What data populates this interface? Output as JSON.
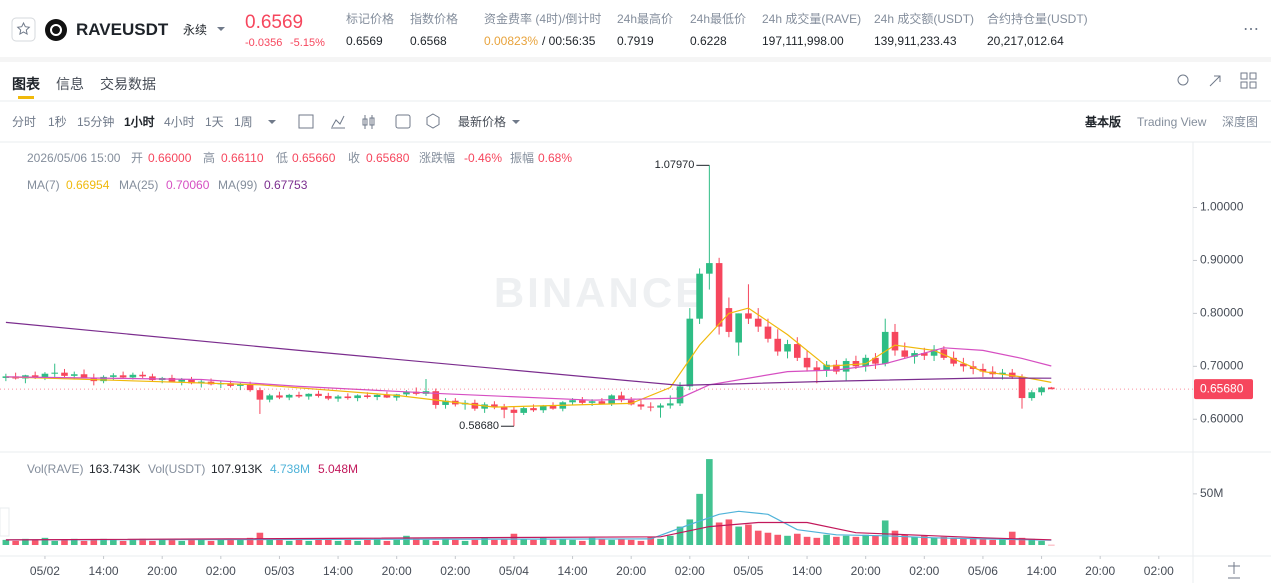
{
  "header": {
    "symbol": "RAVEUSDT",
    "contract": "永续",
    "price": "0.6569",
    "change": "-0.0356",
    "change_pct": "-5.15%",
    "stats": [
      {
        "label": "标记价格",
        "value": "0.6569"
      },
      {
        "label": "指数价格",
        "value": "0.6568"
      },
      {
        "label": "资金费率 (4时)/倒计时",
        "value": "0.00823%",
        "extra": "/ 00:56:35"
      },
      {
        "label": "24h最高价",
        "value": "0.7919"
      },
      {
        "label": "24h最低价",
        "value": "0.6228"
      },
      {
        "label": "24h 成交量(RAVE)",
        "value": "197,111,998.00"
      },
      {
        "label": "24h 成交额(USDT)",
        "value": "139,911,233.43"
      },
      {
        "label": "合约持仓量(USDT)",
        "value": "20,217,012.64"
      }
    ]
  },
  "tabs": [
    "图表",
    "信息",
    "交易数据"
  ],
  "intervals": [
    "分时",
    "1秒",
    "15分钟",
    "1小时",
    "4小时",
    "1天",
    "1周"
  ],
  "price_type": "最新价格",
  "views": [
    "基本版",
    "Trading View",
    "深度图"
  ],
  "chart_data": {
    "type": "candlestick",
    "up_color": "#2ebd85",
    "down_color": "#f6465d",
    "watermark": "BINANCE",
    "legend": {
      "time": "2026/05/06 15:00",
      "items": [
        {
          "label": "开",
          "value": "0.66000"
        },
        {
          "label": "高",
          "value": "0.66110"
        },
        {
          "label": "低",
          "value": "0.65660"
        },
        {
          "label": "收",
          "value": "0.65680"
        },
        {
          "label": "涨跌幅",
          "value": "-0.46%"
        },
        {
          "label": "振幅",
          "value": "0.68%"
        }
      ]
    },
    "xlim": [
      -0.6,
      121.5
    ],
    "xticks": [
      {
        "value": 4,
        "label": "05/02"
      },
      {
        "value": 10,
        "label": "14:00"
      },
      {
        "value": 16,
        "label": "20:00"
      },
      {
        "value": 22,
        "label": "02:00"
      },
      {
        "value": 28,
        "label": "05/03"
      },
      {
        "value": 34,
        "label": "14:00"
      },
      {
        "value": 40,
        "label": "20:00"
      },
      {
        "value": 46,
        "label": "02:00"
      },
      {
        "value": 52,
        "label": "05/04"
      },
      {
        "value": 58,
        "label": "14:00"
      },
      {
        "value": 64,
        "label": "20:00"
      },
      {
        "value": 70,
        "label": "02:00"
      },
      {
        "value": 76,
        "label": "05/05"
      },
      {
        "value": 82,
        "label": "14:00"
      },
      {
        "value": 88,
        "label": "20:00"
      },
      {
        "value": 94,
        "label": "02:00"
      },
      {
        "value": 100,
        "label": "05/06"
      },
      {
        "value": 106,
        "label": "14:00"
      },
      {
        "value": 112,
        "label": "20:00"
      },
      {
        "value": 118,
        "label": "02:00"
      }
    ],
    "ylim": [
      0.54,
      1.12
    ],
    "yticks": [
      {
        "value": 0.6,
        "label": "0.60000"
      },
      {
        "value": 0.7,
        "label": "0.70000"
      },
      {
        "value": 0.8,
        "label": "0.80000"
      },
      {
        "value": 0.9,
        "label": "0.90000"
      },
      {
        "value": 1.0,
        "label": "1.00000"
      }
    ],
    "last_price": {
      "value": 0.6568,
      "label": "0.65680"
    },
    "high_mark": {
      "value": 1.0797,
      "label": "1.07970"
    },
    "low_mark": {
      "value": 0.5868,
      "label": "0.58680"
    },
    "series": [
      {
        "name": "MA(7)",
        "color": "#f0b90b",
        "value_label": "0.66954",
        "x": [
          0,
          26,
          40,
          50,
          64,
          68,
          71,
          74,
          76,
          80,
          84,
          88,
          91,
          95,
          100,
          104,
          107
        ],
        "values": [
          0.68,
          0.665,
          0.645,
          0.623,
          0.63,
          0.66,
          0.74,
          0.8,
          0.81,
          0.76,
          0.7,
          0.705,
          0.74,
          0.73,
          0.69,
          0.68,
          0.66954
        ]
      },
      {
        "name": "MA(25)",
        "color": "#d64fc2",
        "value_label": "0.70060",
        "x": [
          0,
          20,
          30,
          45,
          60,
          69,
          72,
          80,
          85,
          90,
          96,
          100,
          104,
          107
        ],
        "values": [
          0.68,
          0.675,
          0.662,
          0.648,
          0.636,
          0.64,
          0.665,
          0.69,
          0.693,
          0.705,
          0.735,
          0.73,
          0.715,
          0.7006
        ]
      },
      {
        "name": "MA(99)",
        "color": "#7b2d8e",
        "value_label": "0.67753",
        "x": [
          0,
          30,
          69,
          85,
          100,
          107
        ],
        "values": [
          0.783,
          0.73,
          0.664,
          0.672,
          0.678,
          0.67753
        ]
      }
    ],
    "candles": [
      [
        0.678,
        0.686,
        0.672,
        0.681
      ],
      [
        0.681,
        0.688,
        0.675,
        0.677
      ],
      [
        0.677,
        0.684,
        0.668,
        0.683
      ],
      [
        0.683,
        0.69,
        0.676,
        0.679
      ],
      [
        0.679,
        0.689,
        0.674,
        0.686
      ],
      [
        0.686,
        0.705,
        0.68,
        0.688
      ],
      [
        0.688,
        0.695,
        0.679,
        0.682
      ],
      [
        0.682,
        0.69,
        0.675,
        0.685
      ],
      [
        0.685,
        0.694,
        0.678,
        0.678
      ],
      [
        0.678,
        0.686,
        0.664,
        0.672
      ],
      [
        0.672,
        0.683,
        0.668,
        0.68
      ],
      [
        0.68,
        0.687,
        0.674,
        0.683
      ],
      [
        0.683,
        0.69,
        0.677,
        0.679
      ],
      [
        0.679,
        0.688,
        0.675,
        0.684
      ],
      [
        0.684,
        0.69,
        0.678,
        0.681
      ],
      [
        0.681,
        0.686,
        0.672,
        0.674
      ],
      [
        0.674,
        0.68,
        0.668,
        0.678
      ],
      [
        0.678,
        0.684,
        0.67,
        0.671
      ],
      [
        0.671,
        0.678,
        0.664,
        0.675
      ],
      [
        0.675,
        0.68,
        0.666,
        0.668
      ],
      [
        0.668,
        0.674,
        0.66,
        0.671
      ],
      [
        0.671,
        0.677,
        0.664,
        0.666
      ],
      [
        0.666,
        0.672,
        0.659,
        0.668
      ],
      [
        0.668,
        0.673,
        0.66,
        0.663
      ],
      [
        0.663,
        0.669,
        0.655,
        0.666
      ],
      [
        0.666,
        0.671,
        0.652,
        0.655
      ],
      [
        0.655,
        0.66,
        0.61,
        0.637
      ],
      [
        0.637,
        0.648,
        0.632,
        0.645
      ],
      [
        0.645,
        0.652,
        0.638,
        0.641
      ],
      [
        0.641,
        0.648,
        0.636,
        0.646
      ],
      [
        0.646,
        0.652,
        0.64,
        0.643
      ],
      [
        0.643,
        0.649,
        0.637,
        0.648
      ],
      [
        0.648,
        0.654,
        0.641,
        0.644
      ],
      [
        0.644,
        0.65,
        0.636,
        0.639
      ],
      [
        0.639,
        0.646,
        0.633,
        0.643
      ],
      [
        0.643,
        0.649,
        0.637,
        0.64
      ],
      [
        0.64,
        0.647,
        0.634,
        0.645
      ],
      [
        0.645,
        0.651,
        0.639,
        0.642
      ],
      [
        0.642,
        0.648,
        0.636,
        0.646
      ],
      [
        0.646,
        0.652,
        0.64,
        0.641
      ],
      [
        0.641,
        0.648,
        0.635,
        0.647
      ],
      [
        0.647,
        0.655,
        0.642,
        0.652
      ],
      [
        0.652,
        0.66,
        0.645,
        0.648
      ],
      [
        0.648,
        0.676,
        0.644,
        0.653
      ],
      [
        0.653,
        0.658,
        0.62,
        0.627
      ],
      [
        0.627,
        0.64,
        0.62,
        0.635
      ],
      [
        0.635,
        0.64,
        0.624,
        0.628
      ],
      [
        0.628,
        0.636,
        0.618,
        0.631
      ],
      [
        0.631,
        0.637,
        0.616,
        0.62
      ],
      [
        0.62,
        0.632,
        0.612,
        0.628
      ],
      [
        0.628,
        0.634,
        0.619,
        0.623
      ],
      [
        0.623,
        0.629,
        0.602,
        0.618
      ],
      [
        0.618,
        0.625,
        0.5868,
        0.612
      ],
      [
        0.612,
        0.624,
        0.608,
        0.621
      ],
      [
        0.621,
        0.628,
        0.614,
        0.617
      ],
      [
        0.617,
        0.627,
        0.612,
        0.625
      ],
      [
        0.625,
        0.632,
        0.618,
        0.62
      ],
      [
        0.62,
        0.634,
        0.615,
        0.632
      ],
      [
        0.632,
        0.64,
        0.626,
        0.636
      ],
      [
        0.636,
        0.642,
        0.628,
        0.631
      ],
      [
        0.631,
        0.638,
        0.625,
        0.634
      ],
      [
        0.634,
        0.64,
        0.628,
        0.629
      ],
      [
        0.629,
        0.647,
        0.625,
        0.645
      ],
      [
        0.645,
        0.652,
        0.632,
        0.636
      ],
      [
        0.636,
        0.642,
        0.626,
        0.628
      ],
      [
        0.628,
        0.636,
        0.618,
        0.624
      ],
      [
        0.624,
        0.632,
        0.615,
        0.622
      ],
      [
        0.622,
        0.63,
        0.603,
        0.626
      ],
      [
        0.626,
        0.645,
        0.62,
        0.63
      ],
      [
        0.63,
        0.67,
        0.625,
        0.662
      ],
      [
        0.662,
        0.81,
        0.655,
        0.79
      ],
      [
        0.79,
        0.885,
        0.78,
        0.875
      ],
      [
        0.875,
        1.0797,
        0.845,
        0.895
      ],
      [
        0.895,
        0.905,
        0.76,
        0.775
      ],
      [
        0.81,
        0.83,
        0.755,
        0.765
      ],
      [
        0.745,
        0.8,
        0.72,
        0.8
      ],
      [
        0.8,
        0.855,
        0.78,
        0.79
      ],
      [
        0.79,
        0.81,
        0.765,
        0.775
      ],
      [
        0.775,
        0.79,
        0.745,
        0.752
      ],
      [
        0.752,
        0.77,
        0.72,
        0.728
      ],
      [
        0.728,
        0.75,
        0.715,
        0.742
      ],
      [
        0.742,
        0.755,
        0.71,
        0.716
      ],
      [
        0.716,
        0.73,
        0.69,
        0.698
      ],
      [
        0.698,
        0.71,
        0.668,
        0.692
      ],
      [
        0.692,
        0.71,
        0.68,
        0.703
      ],
      [
        0.703,
        0.712,
        0.685,
        0.69
      ],
      [
        0.69,
        0.715,
        0.672,
        0.71
      ],
      [
        0.71,
        0.72,
        0.695,
        0.7
      ],
      [
        0.7,
        0.722,
        0.69,
        0.716
      ],
      [
        0.716,
        0.725,
        0.695,
        0.705
      ],
      [
        0.705,
        0.79,
        0.7,
        0.765
      ],
      [
        0.765,
        0.78,
        0.72,
        0.73
      ],
      [
        0.73,
        0.745,
        0.715,
        0.718
      ],
      [
        0.718,
        0.73,
        0.705,
        0.725
      ],
      [
        0.725,
        0.735,
        0.712,
        0.72
      ],
      [
        0.72,
        0.74,
        0.71,
        0.732
      ],
      [
        0.732,
        0.738,
        0.712,
        0.716
      ],
      [
        0.716,
        0.728,
        0.7,
        0.705
      ],
      [
        0.705,
        0.716,
        0.69,
        0.7
      ],
      [
        0.7,
        0.71,
        0.685,
        0.695
      ],
      [
        0.695,
        0.705,
        0.68,
        0.69
      ],
      [
        0.69,
        0.7,
        0.678,
        0.685
      ],
      [
        0.685,
        0.695,
        0.675,
        0.688
      ],
      [
        0.688,
        0.695,
        0.676,
        0.68
      ],
      [
        0.68,
        0.685,
        0.62,
        0.64
      ],
      [
        0.64,
        0.655,
        0.635,
        0.651
      ],
      [
        0.651,
        0.662,
        0.645,
        0.66
      ],
      [
        0.66,
        0.6611,
        0.6566,
        0.6568
      ]
    ],
    "volume": {
      "legend": [
        {
          "label": "Vol(RAVE)",
          "value": "163.743K"
        },
        {
          "label": "Vol(USDT)",
          "value": "107.913K"
        }
      ],
      "ylim": [
        0,
        88
      ],
      "yticks": [
        {
          "value": 50,
          "label": "50M"
        }
      ],
      "values": [
        5,
        4,
        6,
        5,
        7,
        4,
        5,
        6,
        4,
        5,
        6,
        5,
        4,
        5,
        6,
        4,
        5,
        5,
        4,
        6,
        5,
        4,
        5,
        6,
        5,
        7,
        12,
        6,
        5,
        4,
        5,
        4,
        6,
        5,
        4,
        5,
        4,
        5,
        6,
        4,
        5,
        9,
        6,
        5,
        4,
        6,
        5,
        4,
        5,
        7,
        5,
        6,
        11,
        6,
        5,
        7,
        5,
        6,
        5,
        4,
        7,
        6,
        5,
        6,
        5,
        4,
        8,
        6,
        9,
        18,
        25,
        50,
        84,
        22,
        25,
        18,
        20,
        14,
        12,
        10,
        9,
        11,
        8,
        7,
        10,
        8,
        9,
        8,
        10,
        9,
        24,
        14,
        10,
        8,
        9,
        7,
        8,
        7,
        6,
        7,
        6,
        5,
        6,
        13,
        7,
        6,
        4,
        0.163743
      ],
      "series": [
        {
          "color": "#4fb3d9",
          "value_label": "4.738M",
          "x": [
            0,
            66,
            70,
            73,
            75,
            78,
            81,
            85,
            90,
            95,
            100,
            107
          ],
          "values": [
            5,
            6,
            20,
            30,
            33,
            30,
            15,
            10,
            9,
            7,
            6,
            4.738
          ]
        },
        {
          "color": "#c2185b",
          "value_label": "5.048M",
          "x": [
            0,
            67,
            72,
            77,
            82,
            87,
            95,
            100,
            107
          ],
          "values": [
            5,
            8,
            18,
            22,
            22,
            12,
            9,
            7,
            5.048
          ]
        }
      ]
    }
  }
}
